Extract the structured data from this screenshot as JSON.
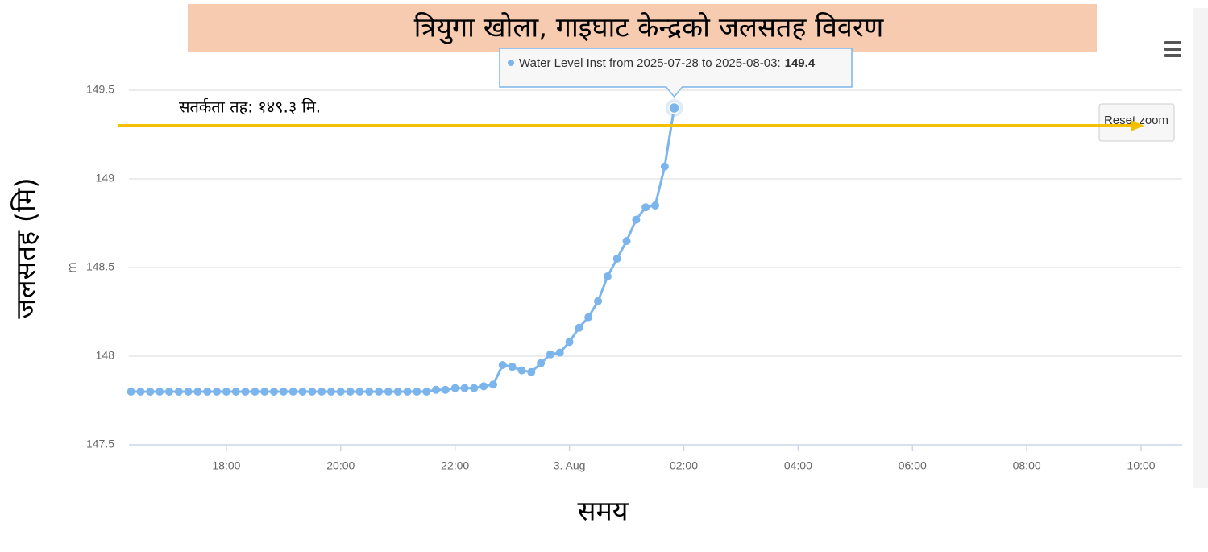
{
  "chart_data": {
    "type": "line",
    "title": "त्रियुगा खोला, गाइघाट केन्द्रको जलसतह विवरण",
    "y_label": "जलसतह (मि)",
    "y_unit_label": "m",
    "x_label": "समय",
    "reset_button": "Reset zoom",
    "threshold": {
      "label": "सतर्कता तह: १४९.३ मि.",
      "value": 149.3,
      "color": "#f5c000"
    },
    "tooltip": {
      "text": "Water Level Inst from 2025-07-28 to 2025-08-03:",
      "point": 57
    },
    "x": [
      16.333,
      16.5,
      16.667,
      16.833,
      17,
      17.167,
      17.333,
      17.5,
      17.667,
      17.833,
      18,
      18.167,
      18.333,
      18.5,
      18.667,
      18.833,
      19,
      19.167,
      19.333,
      19.5,
      19.667,
      19.833,
      20,
      20.167,
      20.333,
      20.5,
      20.667,
      20.833,
      21,
      21.167,
      21.333,
      21.5,
      21.667,
      21.833,
      22,
      22.167,
      22.333,
      22.5,
      22.667,
      22.833,
      23,
      23.167,
      23.333,
      23.5,
      23.667,
      23.833,
      24,
      24.167,
      24.333,
      24.5,
      24.667,
      24.833,
      25,
      25.167,
      25.333,
      25.5,
      25.667,
      25.833
    ],
    "series": [
      {
        "color": "#7cb5ec",
        "values": [
          147.8,
          147.8,
          147.8,
          147.8,
          147.8,
          147.8,
          147.8,
          147.8,
          147.8,
          147.8,
          147.8,
          147.8,
          147.8,
          147.8,
          147.8,
          147.8,
          147.8,
          147.8,
          147.8,
          147.8,
          147.8,
          147.8,
          147.8,
          147.8,
          147.8,
          147.8,
          147.8,
          147.8,
          147.8,
          147.8,
          147.8,
          147.8,
          147.81,
          147.81,
          147.82,
          147.82,
          147.82,
          147.83,
          147.84,
          147.95,
          147.94,
          147.92,
          147.91,
          147.96,
          148.01,
          148.02,
          148.08,
          148.16,
          148.22,
          148.31,
          148.45,
          148.55,
          148.65,
          148.77,
          148.84,
          148.85,
          149.07,
          149.4
        ]
      }
    ],
    "xlim": [
      16.296,
      34.718
    ],
    "xticks": [
      {
        "value": 18,
        "label": "18:00"
      },
      {
        "value": 20,
        "label": "20:00"
      },
      {
        "value": 22,
        "label": "22:00"
      },
      {
        "value": 24,
        "label": "3. Aug"
      },
      {
        "value": 26,
        "label": "02:00"
      },
      {
        "value": 28,
        "label": "04:00"
      },
      {
        "value": 30,
        "label": "06:00"
      },
      {
        "value": 32,
        "label": "08:00"
      },
      {
        "value": 34,
        "label": "10:00"
      }
    ],
    "ylim": [
      147.5,
      149.5
    ],
    "yticks": [
      147.5,
      148,
      148.5,
      149,
      149.5
    ],
    "grid": true
  }
}
